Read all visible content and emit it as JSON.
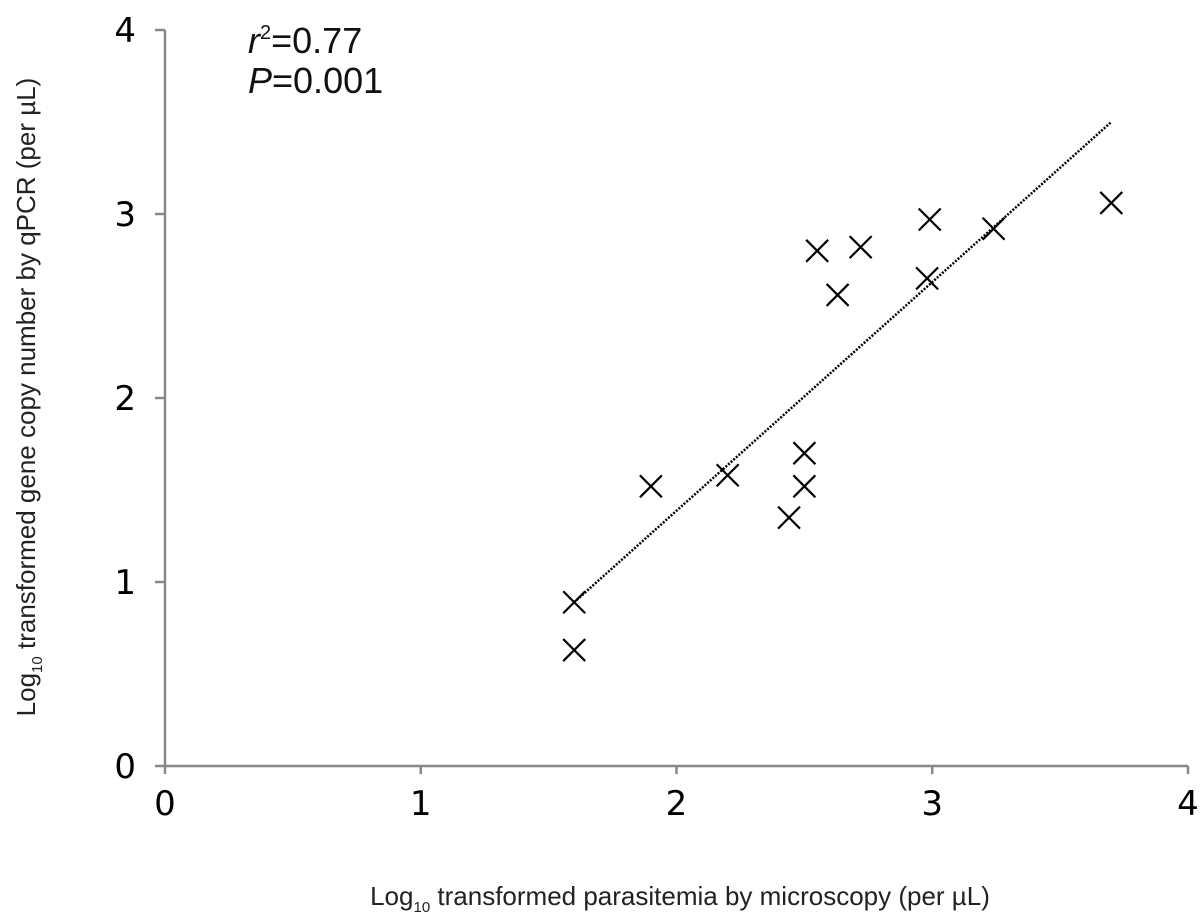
{
  "chart_data": {
    "type": "scatter",
    "title": "",
    "xlabel": {
      "prefix": "Log",
      "sub": "10",
      "rest": " transformed parasitemia by microscopy (per µL)"
    },
    "ylabel": {
      "prefix": "Log",
      "sub": "10",
      "rest": " transformed gene copy number by qPCR (per µL)"
    },
    "xlim": [
      0,
      4
    ],
    "ylim": [
      0,
      4
    ],
    "x_ticks": [
      "0",
      "1",
      "2",
      "3",
      "4"
    ],
    "y_ticks": [
      "0",
      "1",
      "2",
      "3",
      "4"
    ],
    "grid": false,
    "marker": "x",
    "points": [
      {
        "x": 1.6,
        "y": 0.89
      },
      {
        "x": 1.6,
        "y": 0.63
      },
      {
        "x": 1.9,
        "y": 1.52
      },
      {
        "x": 2.2,
        "y": 1.58
      },
      {
        "x": 2.44,
        "y": 1.35
      },
      {
        "x": 2.5,
        "y": 1.7
      },
      {
        "x": 2.5,
        "y": 1.52
      },
      {
        "x": 2.55,
        "y": 2.8
      },
      {
        "x": 2.63,
        "y": 2.56
      },
      {
        "x": 2.72,
        "y": 2.82
      },
      {
        "x": 2.98,
        "y": 2.65
      },
      {
        "x": 2.99,
        "y": 2.97
      },
      {
        "x": 3.24,
        "y": 2.92
      },
      {
        "x": 3.7,
        "y": 3.06
      }
    ],
    "trendline": {
      "style": "dotted",
      "x": [
        1.6,
        3.7
      ],
      "y": [
        0.89,
        3.5
      ]
    },
    "annotations": {
      "r2_symbol": "r",
      "r2_sup": "2",
      "r2_value": "=0.77",
      "p_symbol": "P",
      "p_value": "=0.001"
    },
    "colors": {
      "axis": "#888888",
      "marker": "#000000",
      "trendline": "#000000",
      "text": "#000000"
    }
  }
}
